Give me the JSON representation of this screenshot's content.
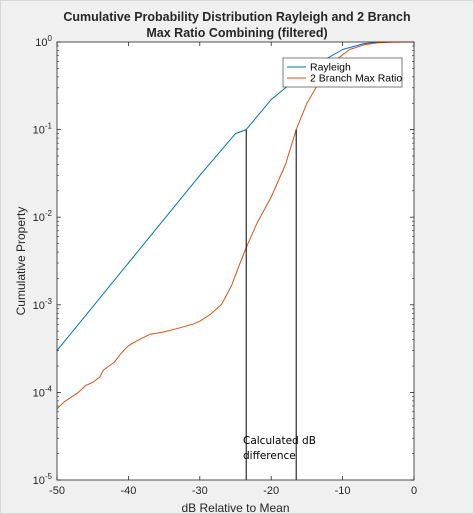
{
  "chart_data": {
    "type": "line",
    "title": [
      "Cumulative Probability Distribution Rayleigh and 2 Branch",
      "Max Ratio Combining (filtered)"
    ],
    "xlabel": "dB Relative to Mean",
    "ylabel": "Cumulative Property",
    "xlim": [
      -50,
      0
    ],
    "ylim": [
      1e-05,
      1
    ],
    "yscale": "log",
    "xticks": [
      -50,
      -40,
      -30,
      -20,
      -10,
      0
    ],
    "xtick_labels": [
      "-50",
      "-40",
      "-30",
      "-20",
      "-10",
      "0"
    ],
    "yticks": [
      1e-05,
      0.0001,
      0.001,
      0.01,
      0.1,
      1
    ],
    "ytick_labels": [
      {
        "base": "10",
        "exp": "-5"
      },
      {
        "base": "10",
        "exp": "-4"
      },
      {
        "base": "10",
        "exp": "-3"
      },
      {
        "base": "10",
        "exp": "-2"
      },
      {
        "base": "10",
        "exp": "-1"
      },
      {
        "base": "10",
        "exp": "0"
      }
    ],
    "grid": false,
    "legend_position": "top-right",
    "series": [
      {
        "name": "Rayleigh",
        "color": "#0072bd",
        "x": [
          -50,
          -45,
          -40,
          -35,
          -30,
          -25,
          -23.5,
          -20,
          -15,
          -10,
          -7,
          -5,
          -3,
          0
        ],
        "y": [
          0.0003,
          0.00095,
          0.003,
          0.0095,
          0.03,
          0.09,
          0.1,
          0.22,
          0.48,
          0.82,
          0.96,
          0.995,
          1.0,
          1.0
        ]
      },
      {
        "name": "2 Branch Max Ratio",
        "color": "#d95319",
        "x": [
          -50,
          -49,
          -47,
          -46,
          -45,
          -44,
          -43.5,
          -42,
          -41,
          -40.5,
          -40,
          -39,
          -38,
          -37,
          -35,
          -33,
          -31,
          -30,
          -28.5,
          -28,
          -27,
          -26.5,
          -25.5,
          -24.5,
          -23.5,
          -22,
          -20,
          -18,
          -16.5,
          -15,
          -13,
          -11,
          -9,
          -7,
          -5,
          -3,
          0
        ],
        "y": [
          6.5e-05,
          7.8e-05,
          0.0001,
          0.00012,
          0.00013,
          0.00015,
          0.00018,
          0.00022,
          0.00028,
          0.00031,
          0.00034,
          0.00038,
          0.00042,
          0.00046,
          0.00049,
          0.00054,
          0.0006,
          0.00065,
          0.00078,
          0.00085,
          0.001,
          0.00118,
          0.0017,
          0.0028,
          0.0045,
          0.0085,
          0.017,
          0.04,
          0.1,
          0.2,
          0.38,
          0.62,
          0.82,
          0.93,
          0.98,
          0.998,
          1.0
        ]
      }
    ],
    "markers": [
      {
        "x": -23.5,
        "y": 0.1
      },
      {
        "x": -16.5,
        "y": 0.1
      }
    ],
    "annotation": [
      "Calculated dB",
      "difference"
    ]
  }
}
